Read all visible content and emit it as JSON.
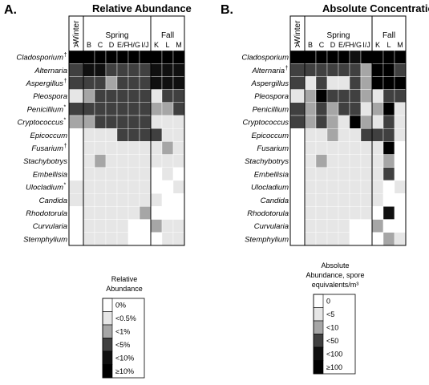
{
  "chart_data": [
    {
      "type": "heatmap",
      "panel_label": "A.",
      "title": "Relative Abundance",
      "season_labels": [
        "Winter",
        "Spring",
        "Fall"
      ],
      "columns": [
        "A",
        "B",
        "C",
        "D",
        "E/F",
        "H/G",
        "I/J",
        "K",
        "L",
        "M"
      ],
      "rows": [
        "Cladosporium",
        "Alternaria",
        "Aspergillus",
        "Pleospora",
        "Penicillium",
        "Cryptococcus",
        "Epicoccum",
        "Fusarium",
        "Stachybotrys",
        "Embellisia",
        "Ulocladium",
        "Candida",
        "Rhodotorula",
        "Curvularia",
        "Stemphylium"
      ],
      "row_marks": [
        "†",
        "",
        "†",
        "",
        "*",
        "*",
        "",
        "†",
        "",
        "",
        "*",
        "",
        "",
        "",
        ""
      ],
      "values": [
        [
          5,
          5,
          5,
          5,
          5,
          5,
          5,
          5,
          5,
          5
        ],
        [
          3,
          4,
          4,
          3,
          3,
          3,
          3,
          4,
          4,
          4
        ],
        [
          3,
          3,
          3,
          2,
          3,
          3,
          3,
          4,
          4,
          4
        ],
        [
          1,
          2,
          3,
          3,
          3,
          3,
          3,
          1,
          3,
          3
        ],
        [
          3,
          3,
          3,
          3,
          3,
          3,
          3,
          2,
          2,
          3
        ],
        [
          2,
          2,
          3,
          3,
          3,
          3,
          3,
          1,
          1,
          1
        ],
        [
          0,
          1,
          1,
          1,
          3,
          3,
          3,
          3,
          1,
          1
        ],
        [
          0,
          1,
          1,
          1,
          1,
          1,
          1,
          1,
          2,
          1
        ],
        [
          0,
          1,
          2,
          1,
          1,
          1,
          1,
          1,
          1,
          1
        ],
        [
          0,
          1,
          1,
          1,
          1,
          1,
          1,
          0,
          1,
          0
        ],
        [
          1,
          1,
          1,
          1,
          1,
          1,
          1,
          0,
          0,
          1
        ],
        [
          1,
          1,
          1,
          1,
          1,
          1,
          1,
          1,
          0,
          0
        ],
        [
          0,
          1,
          1,
          1,
          1,
          1,
          2,
          0,
          0,
          0
        ],
        [
          0,
          1,
          1,
          1,
          1,
          0,
          0,
          2,
          1,
          1
        ],
        [
          0,
          1,
          1,
          1,
          1,
          0,
          0,
          0,
          1,
          1
        ]
      ],
      "legend": {
        "title_lines": [
          "Relative",
          "Abundance"
        ],
        "entries": [
          "0%",
          "<0.5%",
          "<1%",
          "<5%",
          "<10%",
          "≥10%"
        ]
      }
    },
    {
      "type": "heatmap",
      "panel_label": "B.",
      "title": "Absolute Concentration",
      "season_labels": [
        "Winter",
        "Spring",
        "Fall"
      ],
      "columns": [
        "A",
        "B",
        "C",
        "D",
        "E/F",
        "H/G",
        "I/J",
        "K",
        "L",
        "M"
      ],
      "rows": [
        "Cladosporium",
        "Alternaria",
        "Aspergillus",
        "Pleospora",
        "Penicillium",
        "Cryptococcus",
        "Epicoccum",
        "Fusarium",
        "Stachybotrys",
        "Embellisia",
        "Ulocladium",
        "Candida",
        "Rhodotorula",
        "Curvularia",
        "Stemphylium"
      ],
      "row_marks": [
        "",
        "†",
        "",
        "",
        "",
        "",
        "",
        "",
        "",
        "",
        "",
        "",
        "",
        "",
        ""
      ],
      "values": [
        [
          5,
          5,
          5,
          5,
          5,
          4,
          5,
          5,
          5,
          5
        ],
        [
          3,
          3,
          3,
          3,
          3,
          3,
          2,
          5,
          5,
          3
        ],
        [
          3,
          1,
          3,
          1,
          1,
          3,
          2,
          5,
          5,
          5
        ],
        [
          1,
          2,
          5,
          3,
          3,
          3,
          2,
          1,
          3,
          3
        ],
        [
          3,
          2,
          3,
          2,
          3,
          3,
          1,
          2,
          5,
          1
        ],
        [
          3,
          2,
          3,
          2,
          1,
          5,
          2,
          1,
          3,
          1
        ],
        [
          0,
          1,
          1,
          2,
          1,
          1,
          3,
          3,
          3,
          1
        ],
        [
          0,
          1,
          1,
          1,
          1,
          1,
          1,
          1,
          5,
          0
        ],
        [
          0,
          1,
          2,
          1,
          1,
          1,
          1,
          1,
          2,
          0
        ],
        [
          0,
          1,
          1,
          1,
          1,
          1,
          1,
          1,
          3,
          0
        ],
        [
          0,
          1,
          1,
          1,
          1,
          1,
          1,
          1,
          0,
          1
        ],
        [
          0,
          1,
          1,
          1,
          1,
          1,
          1,
          1,
          0,
          0
        ],
        [
          0,
          1,
          1,
          1,
          1,
          1,
          1,
          0,
          4,
          0
        ],
        [
          0,
          1,
          1,
          1,
          1,
          0,
          0,
          2,
          0,
          0
        ],
        [
          0,
          1,
          1,
          1,
          1,
          0,
          0,
          0,
          2,
          1
        ]
      ],
      "legend": {
        "title_lines": [
          "Absolute",
          "Abundance, spore",
          "equivalents/m³"
        ],
        "entries": [
          "0",
          "<5",
          "<10",
          "<50",
          "<100",
          "≥100"
        ]
      }
    }
  ],
  "colors": {
    "levels": [
      "#ffffff",
      "#e6e6e6",
      "#a6a6a6",
      "#404040",
      "#101010",
      "#000000"
    ],
    "gridline": "#ffffff",
    "border": "#000000"
  }
}
